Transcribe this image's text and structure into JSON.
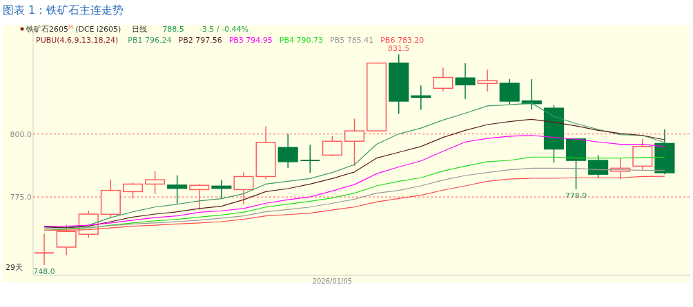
{
  "chart_data": {
    "type": "candlestick",
    "title": "图表 1：铁矿石主连走势",
    "subtitle": "铁矿石2605$^{M}$ (DCE i2605)",
    "categories": [
      null,
      null,
      null,
      null,
      null,
      null,
      null,
      null,
      null,
      null,
      null,
      null,
      null,
      "2026/01/05",
      null,
      null,
      null,
      null,
      null,
      null,
      null,
      null,
      null,
      null,
      null,
      null,
      null,
      null,
      null
    ],
    "ohlc": [
      [
        752.8,
        760.5,
        748.0,
        752.8
      ],
      [
        755.1,
        764.0,
        751.9,
        761.3
      ],
      [
        760.2,
        769.5,
        758.8,
        768.2
      ],
      [
        768.1,
        781.9,
        766.8,
        777.6
      ],
      [
        777.1,
        780.6,
        774.4,
        780.1
      ],
      [
        780.1,
        785.2,
        776.2,
        781.8
      ],
      [
        779.7,
        783.6,
        772.3,
        778.4
      ],
      [
        777.9,
        780.1,
        770.0,
        779.6
      ],
      [
        779.3,
        781.8,
        774.5,
        778.4
      ],
      [
        777.9,
        784.7,
        772.1,
        783.1
      ],
      [
        783.1,
        803.0,
        782.1,
        796.6
      ],
      [
        794.6,
        800.0,
        786.4,
        789.0
      ],
      [
        789.5,
        795.7,
        784.6,
        789.5
      ],
      [
        791.6,
        799.1,
        791.1,
        797.1
      ],
      [
        797.1,
        806.0,
        787.2,
        801.2
      ],
      [
        801.2,
        828.1,
        801.2,
        828.1
      ],
      [
        828.1,
        831.5,
        808.0,
        813.0
      ],
      [
        815.1,
        819.2,
        809.6,
        814.5
      ],
      [
        818.1,
        826.3,
        816.9,
        822.4
      ],
      [
        822.2,
        828.1,
        813.9,
        819.5
      ],
      [
        820.0,
        825.5,
        816.9,
        821.1
      ],
      [
        820.1,
        821.7,
        811.9,
        813.0
      ],
      [
        813.1,
        821.7,
        809.6,
        812.0
      ],
      [
        810.2,
        811.4,
        788.6,
        794.0
      ],
      [
        798.0,
        798.0,
        778.0,
        789.5
      ],
      [
        789.5,
        791.6,
        782.6,
        784.0
      ],
      [
        785.2,
        790.6,
        782.1,
        786.4
      ],
      [
        787.2,
        798.0,
        785.8,
        795.0
      ],
      [
        796.2,
        801.8,
        784.0,
        784.6
      ]
    ],
    "colors": [
      "#ff5a5a",
      "#ff5a5a",
      "#ff5a5a",
      "#ff5a5a",
      "#ff5a5a",
      "#ff5a5a",
      "#007a3d",
      "#ff5a5a",
      "#007a3d",
      "#ff5a5a",
      "#ff5a5a",
      "#007a3d",
      "#007a3d",
      "#ff5a5a",
      "#ff5a5a",
      "#ff5a5a",
      "#007a3d",
      "#007a3d",
      "#ff5a5a",
      "#007a3d",
      "#ff5a5a",
      "#007a3d",
      "#007a3d",
      "#007a3d",
      "#007a3d",
      "#007a3d",
      "#ff5a5a",
      "#ff5a5a",
      "#007a3d"
    ],
    "series": [
      {
        "name": "PB1 796.24",
        "type": "line",
        "color": "#3c9a68",
        "values": [
          763.1,
          762.9,
          763.8,
          766.8,
          769.1,
          771.0,
          772.1,
          773.4,
          774.3,
          776.3,
          780.1,
          781.2,
          782.3,
          784.7,
          787.8,
          795.9,
          800.0,
          802.3,
          805.5,
          808.2,
          811.1,
          811.6,
          812.2,
          806.9,
          804.1,
          801.8,
          799.7,
          799.4,
          796.6
        ]
      },
      {
        "name": "PB2 797.56",
        "type": "line",
        "color": "#5a1e1e",
        "values": [
          763.1,
          762.7,
          763.4,
          765.2,
          767.0,
          768.2,
          769.1,
          770.4,
          771.3,
          773.9,
          777.1,
          778.3,
          780.1,
          782.3,
          784.9,
          790.4,
          792.7,
          795.0,
          798.6,
          801.4,
          803.7,
          804.9,
          805.8,
          804.6,
          803.2,
          801.4,
          800.2,
          799.4,
          797.7
        ]
      },
      {
        "name": "PB3 794.95",
        "type": "line",
        "color": "#ff00ff",
        "values": [
          763.4,
          763.4,
          763.8,
          764.7,
          765.8,
          766.8,
          767.5,
          768.9,
          769.5,
          770.4,
          772.5,
          773.9,
          775.0,
          777.4,
          779.9,
          784.2,
          786.9,
          789.3,
          793.1,
          796.8,
          798.2,
          799.1,
          799.4,
          798.6,
          797.9,
          796.8,
          795.9,
          795.9,
          795.0
        ]
      },
      {
        "name": "PB4 790.73",
        "type": "line",
        "color": "#22dd22",
        "values": [
          761.8,
          762.2,
          762.7,
          763.8,
          764.7,
          765.5,
          766.1,
          767.0,
          767.8,
          768.9,
          771.0,
          772.1,
          773.3,
          774.6,
          776.5,
          779.4,
          781.2,
          782.6,
          785.3,
          787.2,
          789.0,
          789.5,
          790.8,
          790.8,
          790.4,
          790.4,
          790.4,
          790.6,
          790.8
        ]
      },
      {
        "name": "PB5 785.41",
        "type": "line",
        "color": "#999999",
        "values": [
          762.5,
          762.5,
          762.9,
          763.6,
          764.3,
          764.7,
          765.2,
          765.8,
          766.6,
          767.5,
          769.1,
          770.0,
          771.0,
          772.5,
          774.1,
          776.5,
          777.6,
          779.4,
          781.7,
          783.5,
          784.7,
          785.8,
          786.4,
          786.4,
          786.3,
          785.8,
          785.8,
          785.6,
          785.5
        ]
      },
      {
        "name": "PB6 783.20",
        "type": "line",
        "color": "#ff4a4a",
        "values": [
          761.8,
          761.8,
          762.0,
          762.7,
          763.4,
          763.8,
          764.3,
          764.7,
          765.2,
          766.1,
          767.5,
          768.0,
          768.6,
          769.8,
          771.0,
          773.0,
          774.4,
          775.7,
          777.7,
          779.4,
          781.2,
          782.1,
          782.4,
          782.4,
          782.6,
          782.6,
          782.6,
          783.1,
          783.2
        ]
      }
    ],
    "legend_title": "PUBU(4,6,9,13,18,24)",
    "legend": "top left",
    "ylim": [
      743.9,
      842.2
    ],
    "yticks": [
      {
        "value": 775,
        "label": "775.0"
      },
      {
        "value": 800,
        "label": "800.0"
      }
    ],
    "grid": "y",
    "annotations": [
      "日线",
      "788.5",
      "-3.5 / -0.44%",
      "29天",
      {
        "text": "831.5",
        "y": 831.5
      },
      {
        "text": "778.0",
        "y": 778.0
      },
      {
        "text": "748.0",
        "y": 748.0
      }
    ]
  }
}
